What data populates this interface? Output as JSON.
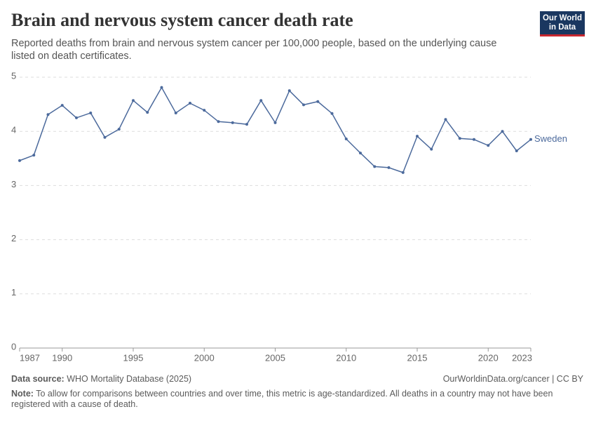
{
  "chart_data": {
    "type": "line",
    "title": "Brain and nervous system cancer death rate",
    "subtitle": "Reported deaths from brain and nervous system cancer per 100,000 people, based on the underlying cause listed on death certificates.",
    "logo": [
      "Our World",
      "in Data"
    ],
    "source_label": "Data source:",
    "source": "WHO Mortality Database (2025)",
    "credit": "OurWorldinData.org/cancer | CC BY",
    "note_label": "Note:",
    "note": "To allow for comparisons between countries and over time, this metric is age-standardized. All deaths in a country may not have been registered with a cause of death.",
    "x": [
      1987,
      1988,
      1989,
      1990,
      1991,
      1992,
      1993,
      1994,
      1995,
      1996,
      1997,
      1998,
      1999,
      2000,
      2001,
      2002,
      2003,
      2004,
      2005,
      2006,
      2007,
      2008,
      2009,
      2010,
      2011,
      2012,
      2013,
      2014,
      2015,
      2016,
      2017,
      2018,
      2019,
      2020,
      2021,
      2022,
      2023
    ],
    "series": [
      {
        "name": "Sweden",
        "color": "#4c6a9c",
        "values": [
          3.46,
          3.56,
          4.31,
          4.48,
          4.25,
          4.34,
          3.89,
          4.04,
          4.57,
          4.35,
          4.81,
          4.34,
          4.52,
          4.39,
          4.18,
          4.16,
          4.13,
          4.57,
          4.16,
          4.75,
          4.49,
          4.55,
          4.33,
          3.86,
          3.6,
          3.35,
          3.33,
          3.24,
          3.91,
          3.67,
          4.22,
          3.87,
          3.85,
          3.74,
          4.0,
          3.64,
          3.85
        ]
      }
    ],
    "xlim": [
      1987,
      2023
    ],
    "xticks": [
      1987,
      1990,
      1995,
      2000,
      2005,
      2010,
      2015,
      2020,
      2023
    ],
    "ylim": [
      0,
      5
    ],
    "yticks": [
      0,
      1,
      2,
      3,
      4,
      5
    ],
    "grid": true
  }
}
